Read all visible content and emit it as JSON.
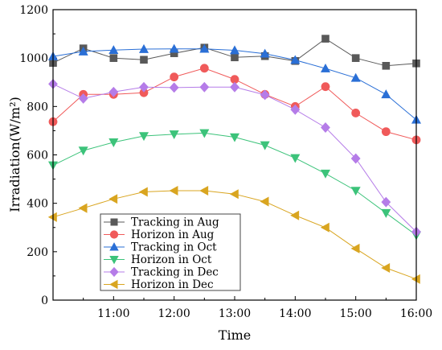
{
  "chart_data": {
    "type": "line",
    "xlabel": "Time",
    "ylabel": "Irradiation(W/m²)",
    "xlim": [
      10,
      16
    ],
    "ylim": [
      0,
      1200
    ],
    "x_ticks": [
      11,
      12,
      13,
      14,
      15,
      16
    ],
    "x_tick_labels": [
      "11:00",
      "12:00",
      "13:00",
      "14:00",
      "15:00",
      "16:00"
    ],
    "y_ticks": [
      0,
      200,
      400,
      600,
      800,
      1000,
      1200
    ],
    "y_tick_labels": [
      "0",
      "200",
      "400",
      "600",
      "800",
      "1000",
      "1200"
    ],
    "x": [
      10,
      10.5,
      11,
      11.5,
      12,
      12.5,
      13,
      13.5,
      14,
      14.5,
      15,
      15.5,
      16
    ],
    "legend_position": "bottom-left",
    "grid": false,
    "series": [
      {
        "name": "Tracking in Aug",
        "marker": "square",
        "color": "#595959",
        "values": [
          980,
          1040,
          1000,
          993,
          1020,
          1043,
          1003,
          1008,
          988,
          1080,
          1000,
          968,
          978
        ]
      },
      {
        "name": "Horizon in Aug",
        "marker": "circle",
        "color": "#f05a5a",
        "values": [
          737,
          850,
          850,
          857,
          922,
          958,
          912,
          850,
          800,
          882,
          773,
          696,
          662
        ]
      },
      {
        "name": "Tracking in Oct",
        "marker": "triangle-up",
        "color": "#2a6fd6",
        "values": [
          1007,
          1027,
          1033,
          1037,
          1038,
          1038,
          1032,
          1018,
          992,
          957,
          918,
          850,
          745
        ]
      },
      {
        "name": "Horizon in Oct",
        "marker": "triangle-down",
        "color": "#3cc37a",
        "values": [
          557,
          618,
          652,
          678,
          685,
          690,
          673,
          640,
          587,
          523,
          452,
          360,
          268
        ]
      },
      {
        "name": "Tracking in Dec",
        "marker": "diamond",
        "color": "#b57ce8",
        "values": [
          893,
          833,
          860,
          880,
          878,
          880,
          880,
          848,
          787,
          713,
          585,
          405,
          282
        ]
      },
      {
        "name": "Horizon in Dec",
        "marker": "triangle-left",
        "color": "#d9a520",
        "values": [
          343,
          380,
          418,
          447,
          452,
          452,
          438,
          407,
          350,
          300,
          213,
          133,
          87
        ]
      }
    ]
  }
}
